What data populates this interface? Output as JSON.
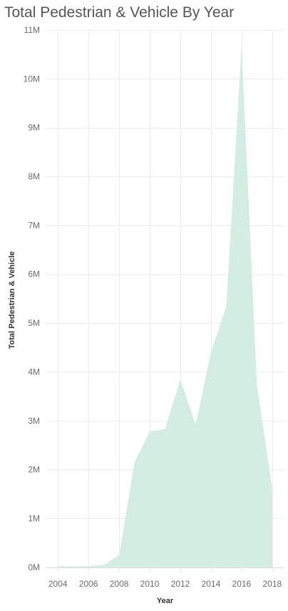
{
  "chart_data": {
    "type": "area",
    "title": "Total Pedestrian & Vehicle By Year",
    "xlabel": "Year",
    "ylabel": "Total Pedestrian & Vehicle",
    "x": [
      2004,
      2005,
      2006,
      2007,
      2008,
      2009,
      2010,
      2011,
      2012,
      2013,
      2014,
      2015,
      2016,
      2017,
      2018
    ],
    "values": [
      20000,
      20000,
      25000,
      50000,
      250000,
      2150000,
      2780000,
      2830000,
      3850000,
      2920000,
      4400000,
      5350000,
      10680000,
      3750000,
      1620000
    ],
    "xlim": [
      2003.2,
      2018.8
    ],
    "ylim": [
      -120000,
      11000000
    ],
    "x_ticks": [
      2004,
      2006,
      2008,
      2010,
      2012,
      2014,
      2016,
      2018
    ],
    "x_tick_labels": [
      "2004",
      "2006",
      "2008",
      "2010",
      "2012",
      "2014",
      "2016",
      "2018"
    ],
    "y_ticks": [
      0,
      1000000,
      2000000,
      3000000,
      4000000,
      5000000,
      6000000,
      7000000,
      8000000,
      9000000,
      10000000,
      11000000
    ],
    "y_tick_labels": [
      "0M",
      "1M",
      "2M",
      "3M",
      "4M",
      "5M",
      "6M",
      "7M",
      "8M",
      "9M",
      "10M",
      "11M"
    ],
    "grid": true,
    "legend": "none",
    "fill_color": "#d3ede3"
  }
}
